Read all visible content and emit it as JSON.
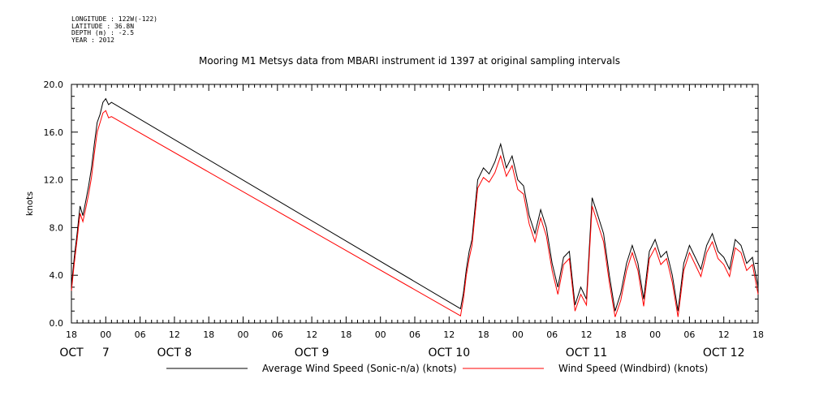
{
  "header": {
    "longitude": "LONGITUDE : 122W(-122)",
    "latitude": "LATITUDE : 36.8N",
    "depth": "DEPTH (m) : -2.5",
    "year": "YEAR : 2012"
  },
  "chart_data": {
    "type": "line",
    "title": "Mooring M1 Metsys data from MBARI instrument id 1397 at original sampling intervals",
    "ylabel": "knots",
    "xlabel": "",
    "ylim": [
      0,
      20
    ],
    "xlim": [
      -6,
      114
    ],
    "x_unit": "hours since 2012-10-07 00:00",
    "yticks": [
      "0.0",
      "4.0",
      "8.0",
      "12.0",
      "16.0",
      "20.0"
    ],
    "xtick_hours": [
      -6,
      0,
      6,
      12,
      18,
      24,
      30,
      36,
      42,
      48,
      54,
      60,
      66,
      72,
      78,
      84,
      90,
      96,
      102,
      108,
      114
    ],
    "xtick_labels": [
      "18",
      "00",
      "06",
      "12",
      "18",
      "00",
      "06",
      "12",
      "18",
      "00",
      "06",
      "12",
      "18",
      "00",
      "06",
      "12",
      "18",
      "00",
      "06",
      "12",
      "18"
    ],
    "day_labels": [
      {
        "text": "OCT",
        "hour": -6
      },
      {
        "text": "7",
        "hour": 0
      },
      {
        "text": "OCT 8",
        "hour": 12
      },
      {
        "text": "OCT 9",
        "hour": 36
      },
      {
        "text": "OCT 10",
        "hour": 60
      },
      {
        "text": "OCT 11",
        "hour": 84
      },
      {
        "text": "OCT 12",
        "hour": 108
      }
    ],
    "series": [
      {
        "name": "Average Wind Speed (Sonic-n/a) (knots)",
        "color": "#000000",
        "x": [
          -6.0,
          -5.5,
          -5.0,
          -4.5,
          -4.0,
          -3.5,
          -3.0,
          -2.5,
          -2.0,
          -1.5,
          -1.0,
          -0.5,
          0.0,
          0.5,
          1.0,
          62.0,
          62.5,
          63.0,
          63.5,
          64.0,
          65.0,
          66.0,
          67.0,
          68.0,
          69.0,
          70.0,
          71.0,
          72.0,
          73.0,
          74.0,
          75.0,
          76.0,
          77.0,
          78.0,
          79.0,
          80.0,
          81.0,
          82.0,
          83.0,
          84.0,
          85.0,
          86.0,
          87.0,
          88.0,
          89.0,
          90.0,
          91.0,
          92.0,
          93.0,
          94.0,
          95.0,
          96.0,
          97.0,
          98.0,
          99.0,
          100.0,
          101.0,
          102.0,
          103.0,
          104.0,
          105.0,
          106.0,
          107.0,
          108.0,
          109.0,
          110.0,
          111.0,
          112.0,
          113.0,
          114.0
        ],
        "y": [
          3.0,
          5.5,
          7.5,
          9.8,
          9.0,
          10.2,
          11.5,
          13.0,
          15.0,
          16.8,
          17.5,
          18.5,
          18.8,
          18.3,
          18.5,
          1.2,
          2.5,
          4.5,
          6.0,
          7.0,
          12.0,
          13.0,
          12.5,
          13.5,
          15.0,
          13.0,
          14.0,
          12.0,
          11.5,
          9.0,
          7.5,
          9.5,
          8.0,
          5.0,
          3.0,
          5.5,
          6.0,
          1.5,
          3.0,
          2.0,
          10.5,
          9.0,
          7.5,
          4.0,
          1.0,
          2.5,
          5.0,
          6.5,
          5.0,
          2.0,
          6.0,
          7.0,
          5.5,
          6.0,
          4.0,
          1.0,
          5.0,
          6.5,
          5.5,
          4.5,
          6.5,
          7.5,
          6.0,
          5.5,
          4.5,
          7.0,
          6.5,
          5.0,
          5.5,
          3.0
        ]
      },
      {
        "name": "Wind Speed (Windbird) (knots)",
        "color": "#ff0000",
        "x": [
          -6.0,
          -5.5,
          -5.0,
          -4.5,
          -4.0,
          -3.5,
          -3.0,
          -2.5,
          -2.0,
          -1.5,
          -1.0,
          -0.5,
          0.0,
          0.5,
          1.0,
          62.0,
          62.5,
          63.0,
          63.5,
          64.0,
          65.0,
          66.0,
          67.0,
          68.0,
          69.0,
          70.0,
          71.0,
          72.0,
          73.0,
          74.0,
          75.0,
          76.0,
          77.0,
          78.0,
          79.0,
          80.0,
          81.0,
          82.0,
          83.0,
          84.0,
          85.0,
          86.0,
          87.0,
          88.0,
          89.0,
          90.0,
          91.0,
          92.0,
          93.0,
          94.0,
          95.0,
          96.0,
          97.0,
          98.0,
          99.0,
          100.0,
          101.0,
          102.0,
          103.0,
          104.0,
          105.0,
          106.0,
          107.0,
          108.0,
          109.0,
          110.0,
          111.0,
          112.0,
          113.0,
          114.0
        ],
        "y": [
          2.7,
          5.0,
          7.0,
          9.2,
          8.5,
          9.6,
          10.8,
          12.2,
          14.2,
          16.0,
          16.8,
          17.6,
          17.8,
          17.2,
          17.3,
          0.6,
          2.0,
          4.0,
          5.4,
          6.5,
          11.3,
          12.2,
          11.8,
          12.6,
          14.0,
          12.3,
          13.2,
          11.2,
          10.8,
          8.3,
          6.8,
          8.8,
          7.3,
          4.4,
          2.4,
          4.9,
          5.4,
          1.0,
          2.4,
          1.5,
          9.8,
          8.3,
          6.8,
          3.4,
          0.5,
          1.9,
          4.4,
          5.9,
          4.4,
          1.4,
          5.4,
          6.3,
          4.9,
          5.4,
          3.4,
          0.5,
          4.4,
          5.9,
          4.9,
          3.9,
          5.9,
          6.8,
          5.4,
          4.9,
          3.9,
          6.3,
          5.9,
          4.4,
          4.9,
          2.4
        ]
      }
    ],
    "grid": false,
    "legend_position": "bottom"
  }
}
